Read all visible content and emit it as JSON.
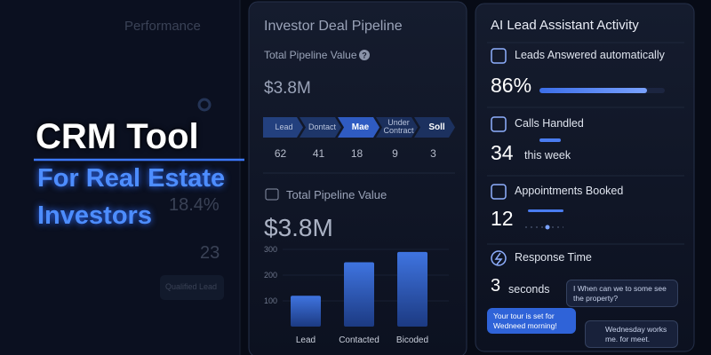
{
  "background_panel": {
    "title": "Performance",
    "value_1": "18.4%",
    "value_2": "23",
    "badge": "Qualified Lead"
  },
  "hero": {
    "title": "CRM Tool",
    "subtitle_1": "For Real Estate",
    "subtitle_2": "Investors"
  },
  "pipeline_panel": {
    "title": "Investor Deal Pipeline",
    "summary_label": "Total Pipeline Value",
    "summary_value": "$3.8M",
    "stages": [
      {
        "label": "Lead",
        "count": "62"
      },
      {
        "label": "Dontact",
        "count": "41"
      },
      {
        "label": "Mae",
        "count": "18"
      },
      {
        "label": "Under Contract",
        "count": "9"
      },
      {
        "label": "Soll",
        "count": "3"
      }
    ],
    "total_label": "Total Pipeline Value",
    "total_value": "$3.8M",
    "chart": {
      "type": "bar",
      "categories": [
        "Lead",
        "Contacted",
        "Bicoded"
      ],
      "values": [
        120,
        250,
        290
      ],
      "ylim": [
        0,
        300
      ],
      "yticks": [
        100,
        200,
        300
      ]
    }
  },
  "assistant_panel": {
    "title": "AI Lead Assistant Activity",
    "items": [
      {
        "label": "Leads Answered automatically",
        "value": "86%"
      },
      {
        "label": "Calls Handled",
        "value": "34",
        "unit": "this week"
      },
      {
        "label": "Appointments Booked",
        "value": "12"
      },
      {
        "label": "Response Time",
        "value": "3",
        "unit": "seconds"
      }
    ],
    "chat": [
      "I When can we to some see the property?",
      "Your tour is set for Wedneed morning!",
      "Wednesday works me. for meet."
    ]
  }
}
